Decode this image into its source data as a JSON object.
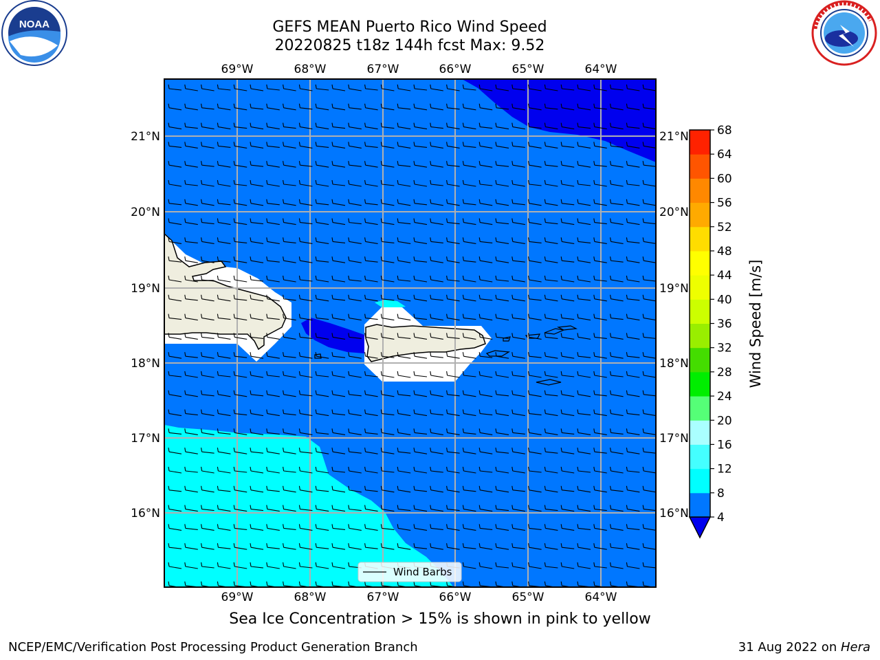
{
  "title": {
    "line1": "GEFS MEAN Puerto Rico Wind Speed",
    "line2": "20220825 t18z 144h fcst   Max: 9.52"
  },
  "caption": "Sea Ice Concentration > 15% is shown in pink to yellow",
  "footer": {
    "left": "NCEP/EMC/Verification Post Processing Product Generation Branch",
    "date": "31 Aug 2022 on ",
    "machine": "Hera"
  },
  "logos": {
    "noaa_text": "NOAA",
    "noaa_ring_text": "NATIONAL OCEANIC AND ATMOSPHERIC ADMINISTRATION · U.S. DEPARTMENT OF COMMERCE",
    "nws_ring_text": "NATIONAL WEATHER SERVICE"
  },
  "map": {
    "lon_labels": [
      "69°W",
      "68°W",
      "67°W",
      "66°W",
      "65°W",
      "64°W"
    ],
    "lat_labels": [
      "21°N",
      "20°N",
      "19°N",
      "18°N",
      "17°N",
      "16°N"
    ],
    "legend_label": "Wind Barbs",
    "colors": {
      "dominant": "#0077ff",
      "low_wind": "#0000ee",
      "cyan": "#00ffff",
      "land": "#efeedf"
    }
  },
  "colorbar": {
    "label": "Wind Speed [m/s]",
    "ticks": [
      "4",
      "8",
      "12",
      "16",
      "20",
      "24",
      "28",
      "32",
      "36",
      "40",
      "44",
      "48",
      "52",
      "56",
      "60",
      "64",
      "68"
    ],
    "colors": [
      "#0077ff",
      "#00ffff",
      "#44ffff",
      "#aaffff",
      "#55ff77",
      "#00ee00",
      "#44dd00",
      "#99ee00",
      "#ccff00",
      "#eeff00",
      "#ffff00",
      "#ffdd00",
      "#ffaa00",
      "#ff8800",
      "#ff5500",
      "#ff2200"
    ],
    "under_color": "#0000ee"
  }
}
